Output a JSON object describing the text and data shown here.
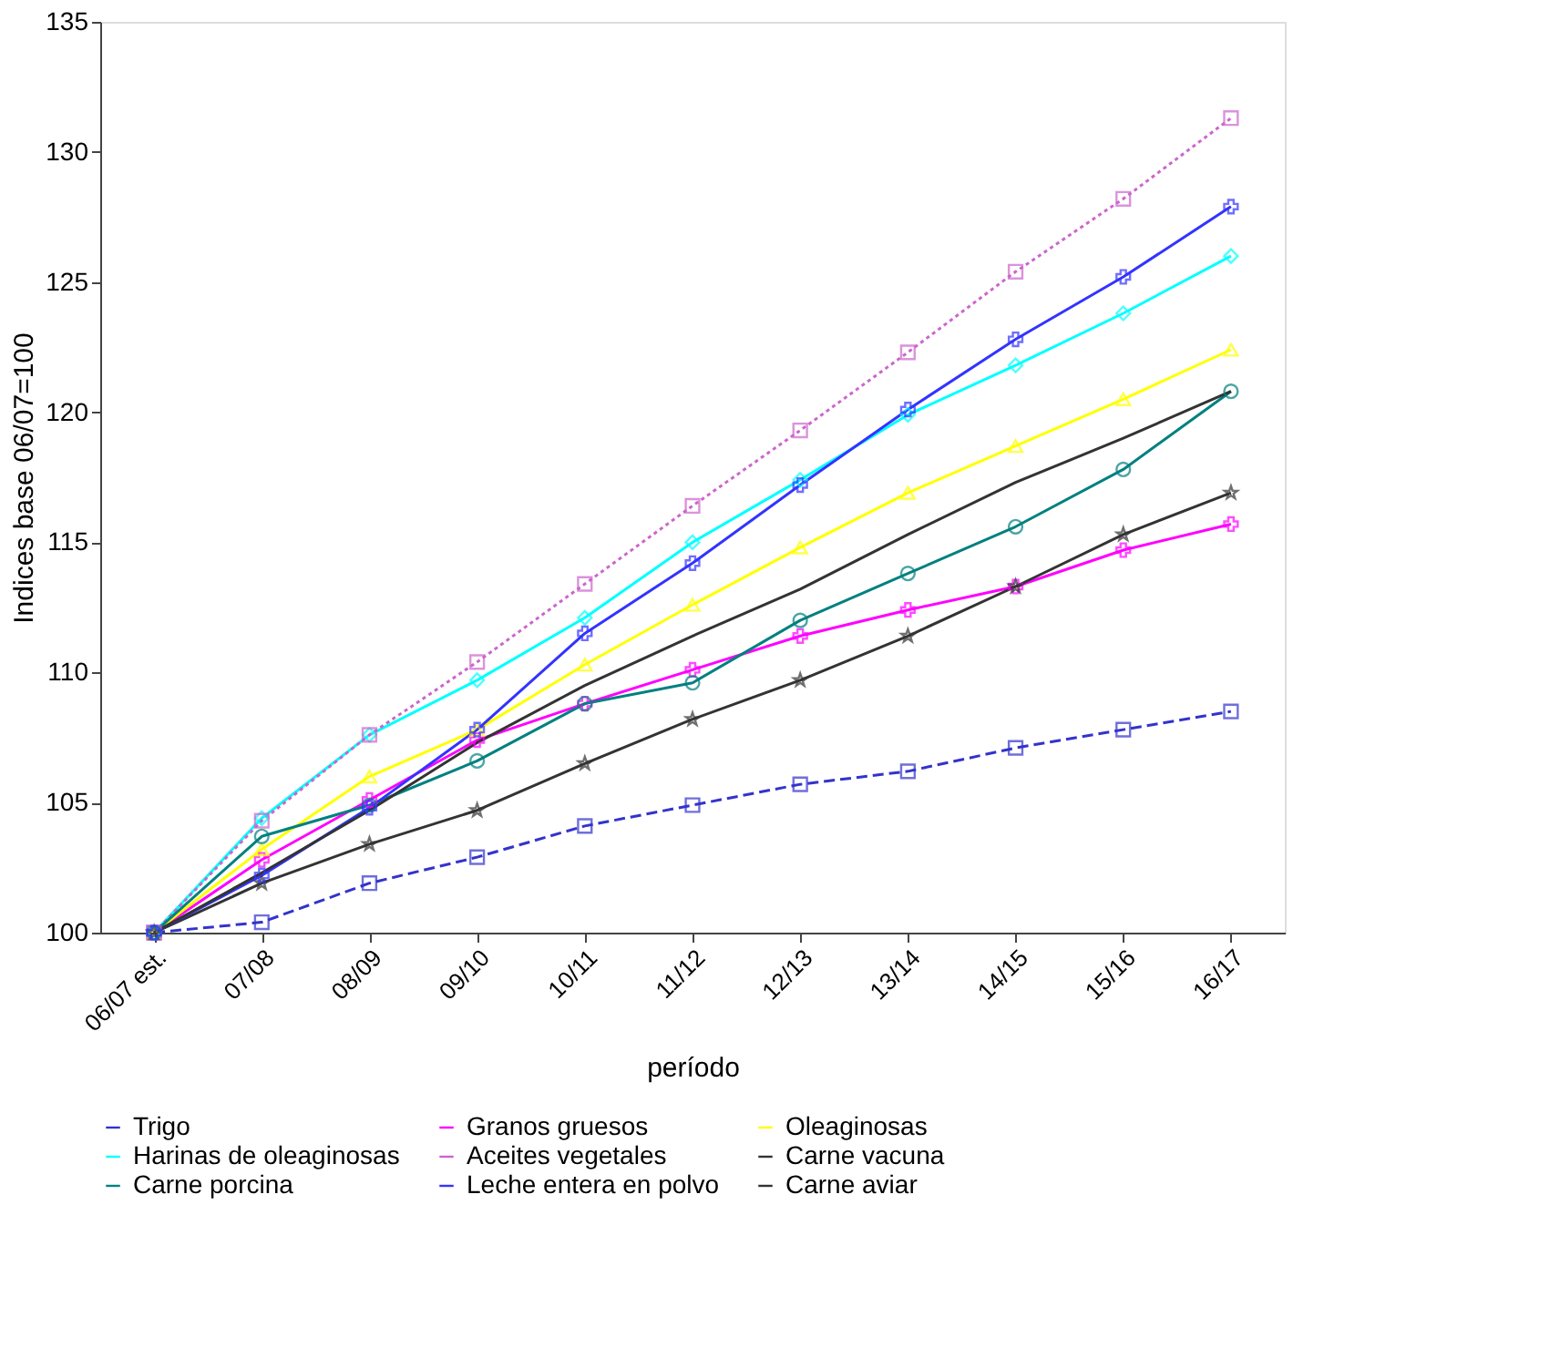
{
  "chart_data": {
    "type": "line",
    "xlabel": "período",
    "ylabel": "Indices base 06/07=100",
    "categories": [
      "06/07 est.",
      "07/08",
      "08/09",
      "09/10",
      "10/11",
      "11/12",
      "12/13",
      "13/14",
      "14/15",
      "15/16",
      "16/17"
    ],
    "ylim": [
      100,
      135
    ],
    "yticks": [
      100,
      105,
      110,
      115,
      120,
      125,
      130,
      135
    ],
    "grid": false,
    "legend": "bottom",
    "series": [
      {
        "name": "Trigo",
        "color": "#3333cc",
        "marker": "square",
        "line_style": "dashed",
        "values": [
          100,
          100.4,
          101.9,
          102.9,
          104.1,
          104.9,
          105.7,
          106.2,
          107.1,
          107.8,
          108.5
        ]
      },
      {
        "name": "Granos gruesos",
        "color": "#ff00ff",
        "marker": "cross",
        "line_style": "solid",
        "values": [
          100,
          102.8,
          105.1,
          107.4,
          108.8,
          110.1,
          111.4,
          112.4,
          113.3,
          114.7,
          115.7
        ]
      },
      {
        "name": "Oleaginosas",
        "color": "#ffff00",
        "marker": "triangle",
        "line_style": "solid",
        "values": [
          100,
          103.2,
          106,
          107.8,
          110.3,
          112.6,
          114.8,
          116.9,
          118.7,
          120.5,
          122.4
        ]
      },
      {
        "name": "Harinas de oleaginosas",
        "color": "#00ffff",
        "marker": "diamond",
        "line_style": "solid",
        "values": [
          100,
          104.4,
          107.6,
          109.7,
          112.1,
          115,
          117.4,
          119.9,
          121.8,
          123.8,
          126
        ]
      },
      {
        "name": "Aceites vegetales",
        "color": "#cc66cc",
        "marker": "square",
        "line_style": "dotted",
        "values": [
          100,
          104.3,
          107.6,
          110.4,
          113.4,
          116.4,
          119.3,
          122.3,
          125.4,
          128.2,
          131.3
        ]
      },
      {
        "name": "Carne vacuna",
        "color": "#333333",
        "marker": "star",
        "line_style": "solid",
        "values": [
          100,
          101.9,
          103.4,
          104.7,
          106.5,
          108.2,
          109.7,
          111.4,
          113.3,
          115.3,
          116.9
        ]
      },
      {
        "name": "Carne porcina",
        "color": "#008080",
        "marker": "circle",
        "line_style": "solid",
        "values": [
          100,
          103.7,
          104.9,
          106.6,
          108.8,
          109.6,
          112,
          113.8,
          115.6,
          117.8,
          120.8
        ]
      },
      {
        "name": "Leche entera en polvo",
        "color": "#3333ff",
        "marker": "cross",
        "line_style": "solid",
        "values": [
          100,
          102.2,
          104.8,
          107.8,
          111.5,
          114.2,
          117.2,
          120.1,
          122.8,
          125.2,
          127.9
        ]
      },
      {
        "name": "Carne aviar",
        "color": "#333333",
        "marker": "none",
        "line_style": "solid",
        "values": [
          100,
          102.3,
          104.7,
          107.3,
          109.5,
          111.4,
          113.2,
          115.3,
          117.3,
          119,
          120.8
        ]
      }
    ]
  }
}
